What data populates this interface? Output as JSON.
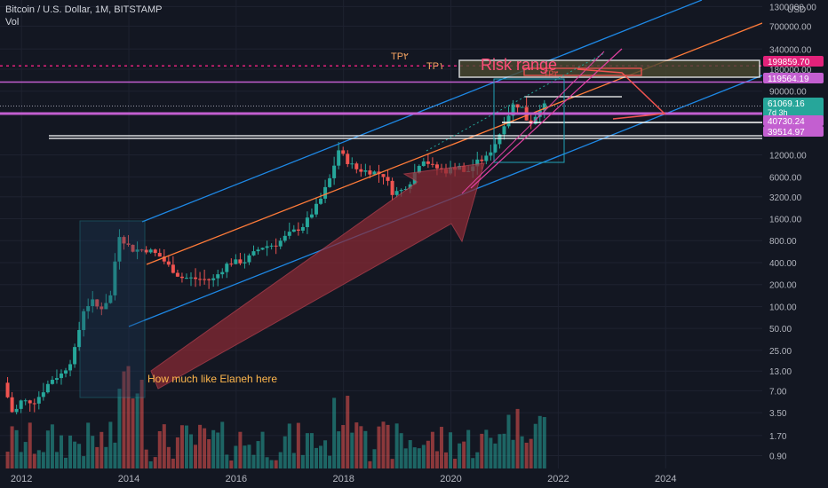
{
  "header": {
    "title": "Bitcoin / U.S. Dollar, 1M, BITSTAMP",
    "volume_label": "Vol"
  },
  "axis": {
    "currency": "USD",
    "price_ticks": [
      "1300000.00",
      "700000.00",
      "340000.00",
      "180000.00",
      "90000.00",
      "12000.00",
      "6000.00",
      "3200.00",
      "1600.00",
      "800.00",
      "400.00",
      "200.00",
      "100.00",
      "50.00",
      "25.00",
      "13.00",
      "7.00",
      "3.50",
      "1.70",
      "0.90"
    ],
    "year_ticks": [
      "2012",
      "2014",
      "2016",
      "2018",
      "2020",
      "2022",
      "2024"
    ]
  },
  "price_badges": [
    {
      "label": "199859.70",
      "color": "#e2227a"
    },
    {
      "label": "119564.19",
      "color": "#c35fd0"
    },
    {
      "label": "61069.16",
      "sublabel": "7d 3h",
      "color": "#26a69a"
    },
    {
      "label": "40730.24",
      "color": "#c35fd0"
    },
    {
      "label": "39514.97",
      "color": "#c35fd0"
    }
  ],
  "annotations": {
    "tp_left": "TP۲",
    "tp_mid": "TP۱",
    "tp_box": "TP۳",
    "risk_range": "Risk range",
    "note": "How much like Elaneh here"
  },
  "colors": {
    "background": "#131722",
    "up": "#26a69a",
    "down": "#ef5350",
    "channel": "#2962ff",
    "midline": "#ff7b39",
    "level_purple": "#c35fd0",
    "level_pink": "#e2227a",
    "note_text": "#ffb74d"
  },
  "chart_data": {
    "type": "candlestick",
    "title": "Bitcoin / U.S. Dollar, 1M, BITSTAMP",
    "y_scale": "log",
    "ylim": [
      0.6,
      1600000
    ],
    "xlim": [
      2011.6,
      2025.8
    ],
    "x_ticks": [
      2012,
      2014,
      2016,
      2018,
      2020,
      2022,
      2024
    ],
    "y_ticks": [
      1300000,
      700000,
      340000,
      180000,
      90000,
      12000,
      6000,
      3200,
      1600,
      800,
      400,
      200,
      100,
      50,
      25,
      13,
      7,
      3.5,
      1.7,
      0.9
    ],
    "price_path": [
      [
        2011.7,
        9
      ],
      [
        2011.9,
        3
      ],
      [
        2012.0,
        5
      ],
      [
        2012.3,
        5
      ],
      [
        2012.6,
        10
      ],
      [
        2012.8,
        12
      ],
      [
        2013.0,
        20
      ],
      [
        2013.2,
        90
      ],
      [
        2013.35,
        120
      ],
      [
        2013.5,
        90
      ],
      [
        2013.7,
        140
      ],
      [
        2013.85,
        1000
      ],
      [
        2013.95,
        800
      ],
      [
        2014.1,
        600
      ],
      [
        2014.4,
        600
      ],
      [
        2014.6,
        500
      ],
      [
        2014.8,
        350
      ],
      [
        2015.0,
        250
      ],
      [
        2015.3,
        240
      ],
      [
        2015.6,
        230
      ],
      [
        2015.9,
        400
      ],
      [
        2016.2,
        420
      ],
      [
        2016.5,
        650
      ],
      [
        2016.8,
        720
      ],
      [
        2017.0,
        960
      ],
      [
        2017.3,
        1300
      ],
      [
        2017.6,
        2800
      ],
      [
        2017.8,
        6000
      ],
      [
        2017.95,
        14000
      ],
      [
        2018.1,
        10000
      ],
      [
        2018.3,
        7500
      ],
      [
        2018.6,
        7000
      ],
      [
        2018.8,
        6300
      ],
      [
        2018.95,
        3700
      ],
      [
        2019.1,
        3800
      ],
      [
        2019.3,
        5300
      ],
      [
        2019.5,
        11000
      ],
      [
        2019.7,
        8300
      ],
      [
        2019.95,
        7200
      ],
      [
        2020.2,
        8600
      ],
      [
        2020.3,
        6400
      ],
      [
        2020.5,
        9300
      ],
      [
        2020.7,
        11000
      ],
      [
        2020.9,
        19000
      ],
      [
        2021.0,
        29000
      ],
      [
        2021.2,
        58000
      ],
      [
        2021.35,
        57000
      ],
      [
        2021.45,
        37000
      ],
      [
        2021.55,
        33000
      ],
      [
        2021.65,
        47000
      ],
      [
        2021.75,
        61069.16
      ]
    ],
    "levels": [
      199859.7,
      119564.19,
      40730.24,
      39514.97
    ],
    "last_price": 61069.16
  }
}
